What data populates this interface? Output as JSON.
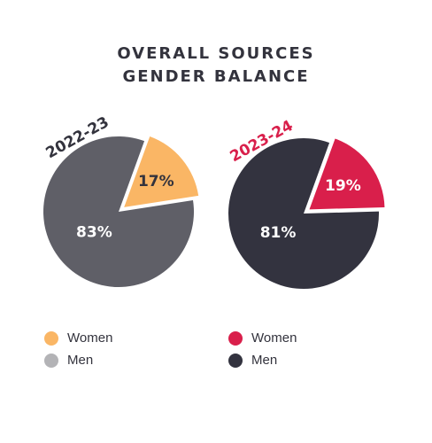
{
  "title": {
    "line1": "OVERALL SOURCES",
    "line2": "GENDER BALANCE"
  },
  "colors": {
    "women_2022": "#fab665",
    "men_2022": "#5f5f67",
    "women_2023": "#d91f4b",
    "men_2023": "#33333f",
    "label_2022": "#33333d",
    "label_2023": "#d91f4b",
    "slice_text_light": "#ffffff",
    "slice_text_dark": "#33333d"
  },
  "chart_data": [
    {
      "type": "pie",
      "period": "2022-23",
      "categories": [
        "Women",
        "Men"
      ],
      "values": [
        17,
        83
      ],
      "labels": [
        "17%",
        "83%"
      ],
      "colors": [
        "#fab665",
        "#5f5f67"
      ]
    },
    {
      "type": "pie",
      "period": "2023-24",
      "categories": [
        "Women",
        "Men"
      ],
      "values": [
        19,
        81
      ],
      "labels": [
        "19%",
        "81%"
      ],
      "colors": [
        "#d91f4b",
        "#33333f"
      ]
    }
  ],
  "legend": {
    "left": [
      {
        "label": "Women",
        "color": "#fab665"
      },
      {
        "label": "Men",
        "color": "#b3b3b6"
      }
    ],
    "right": [
      {
        "label": "Women",
        "color": "#d91f4b"
      },
      {
        "label": "Men",
        "color": "#33333f"
      }
    ]
  }
}
